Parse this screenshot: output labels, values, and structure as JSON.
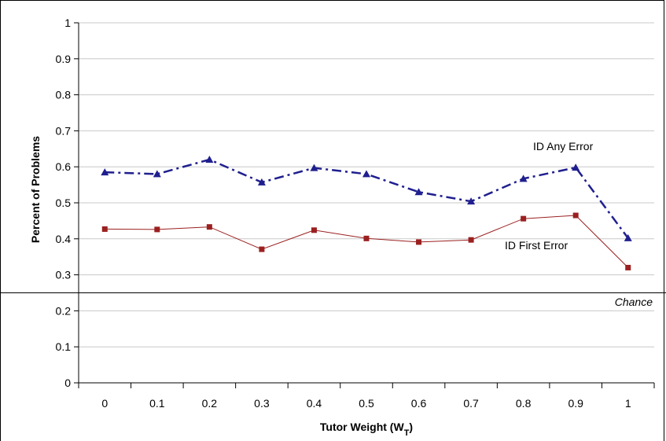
{
  "chart_data": {
    "type": "line",
    "title": "",
    "xlabel": "Tutor Weight  (W",
    "xlabel_sub": "T",
    "xlabel_close": ")",
    "ylabel": "Percent of Problems",
    "categories": [
      "0",
      "0.1",
      "0.2",
      "0.3",
      "0.4",
      "0.5",
      "0.6",
      "0.7",
      "0.8",
      "0.9",
      "1"
    ],
    "yticks": [
      "0",
      "0.1",
      "0.2",
      "0.3",
      "0.4",
      "0.5",
      "0.6",
      "0.7",
      "0.8",
      "0.9",
      "1"
    ],
    "ylim": [
      0,
      1
    ],
    "grid": true,
    "series": [
      {
        "name": "ID Any Error",
        "values": [
          0.585,
          0.58,
          0.62,
          0.557,
          0.597,
          0.58,
          0.53,
          0.504,
          0.567,
          0.598,
          0.402
        ],
        "color": "#1f1f8f",
        "marker": "triangle",
        "dash": "dash-dot"
      },
      {
        "name": "ID First Error",
        "values": [
          0.427,
          0.426,
          0.433,
          0.371,
          0.424,
          0.401,
          0.391,
          0.397,
          0.456,
          0.465,
          0.32
        ],
        "color": "#9b2020",
        "marker": "square",
        "dash": "solid"
      }
    ],
    "reference_line": {
      "label": "Chance",
      "value": 0.25
    }
  }
}
